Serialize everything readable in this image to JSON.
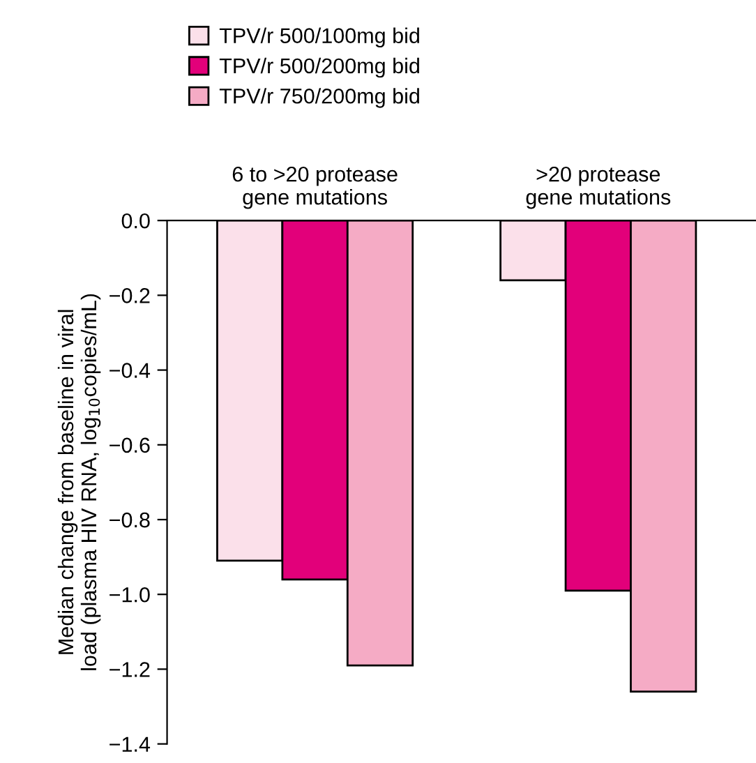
{
  "chart_data": {
    "type": "bar",
    "categories": [
      "6 to >20 protease\ngene mutations",
      ">20 protease\ngene mutations"
    ],
    "ylabel": "Median change from baseline in viral\nload (plasma HIV RNA, log$_{10}$copies/mL)",
    "series": [
      {
        "name": "TPV/r 500/100mg bid",
        "color": "#fbe0ea",
        "values": [
          -0.91,
          -0.16
        ]
      },
      {
        "name": "TPV/r 500/200mg bid",
        "color": "#e2007a",
        "values": [
          -0.96,
          -0.99
        ]
      },
      {
        "name": "TPV/r 750/200mg bid",
        "color": "#f5abc5",
        "values": [
          -1.19,
          -1.26
        ]
      }
    ],
    "ylim": [
      -1.4,
      0
    ],
    "yticks": [
      {
        "value": 0,
        "label": "0.0"
      },
      {
        "value": -0.2,
        "label": "−0.2"
      },
      {
        "value": -0.4,
        "label": "−0.4"
      },
      {
        "value": -0.6,
        "label": "−0.6"
      },
      {
        "value": -0.8,
        "label": "−0.8"
      },
      {
        "value": -1.0,
        "label": "−1.0"
      },
      {
        "value": -1.2,
        "label": "−1.2"
      },
      {
        "value": -1.4,
        "label": "−1.4"
      }
    ],
    "grid": false,
    "legend": "top left"
  }
}
